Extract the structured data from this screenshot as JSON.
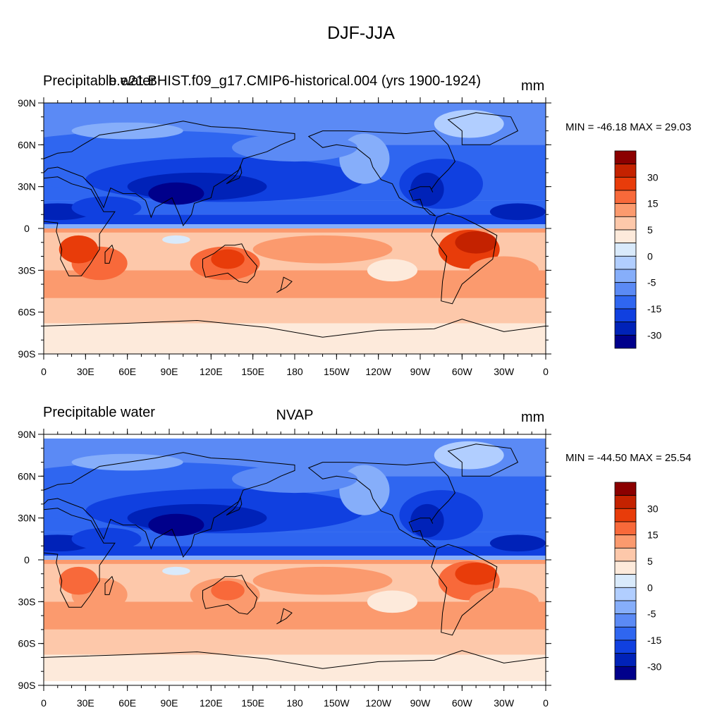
{
  "figure": {
    "title": "DJF-JJA"
  },
  "panels": [
    {
      "left_title": "Precipitable water",
      "center_title": "b.e21.BHIST.f09_g17.CMIP6-historical.004 (yrs 1900-1924)",
      "units": "mm",
      "stats": "MIN = -46.18 MAX =  29.03"
    },
    {
      "left_title": "Precipitable water",
      "center_title": "NVAP",
      "units": "mm",
      "stats": "MIN = -44.50 MAX =  25.54"
    }
  ],
  "axes": {
    "x_tick_labels": [
      "0",
      "30E",
      "60E",
      "90E",
      "120E",
      "150E",
      "180",
      "150W",
      "120W",
      "90W",
      "60W",
      "30W",
      "0"
    ],
    "y_tick_labels": [
      "90N",
      "60N",
      "30N",
      "0",
      "30S",
      "60S",
      "90S"
    ]
  },
  "colorbar": {
    "labels": [
      "30",
      "15",
      "5",
      "0",
      "-5",
      "-15",
      "-30"
    ],
    "colors": [
      "#8b0000",
      "#c42200",
      "#e83c0a",
      "#f8693a",
      "#fb9a6e",
      "#fdc8aa",
      "#fdeadb",
      "#d9eafb",
      "#b1ceff",
      "#86aefa",
      "#5b8af5",
      "#2f66f0",
      "#1040e0",
      "#0022b8",
      "#00008b"
    ]
  },
  "chart_data": {
    "type": "heatmap",
    "title": "DJF-JJA",
    "panels": [
      {
        "name": "b.e21.BHIST.f09_g17.CMIP6-historical.004 (yrs 1900-1924)",
        "variable": "Precipitable water",
        "units": "mm",
        "min": -46.18,
        "max": 29.03
      },
      {
        "name": "NVAP",
        "variable": "Precipitable water",
        "units": "mm",
        "min": -44.5,
        "max": 25.54
      }
    ],
    "x_range": [
      0,
      360
    ],
    "y_range": [
      -90,
      90
    ],
    "contour_levels": [
      -40,
      -35,
      -30,
      -25,
      -20,
      -15,
      -10,
      -5,
      0,
      5,
      10,
      15,
      20,
      25,
      30,
      35
    ],
    "colorbar_ticks": [
      30,
      15,
      5,
      0,
      -5,
      -15,
      -30
    ]
  }
}
